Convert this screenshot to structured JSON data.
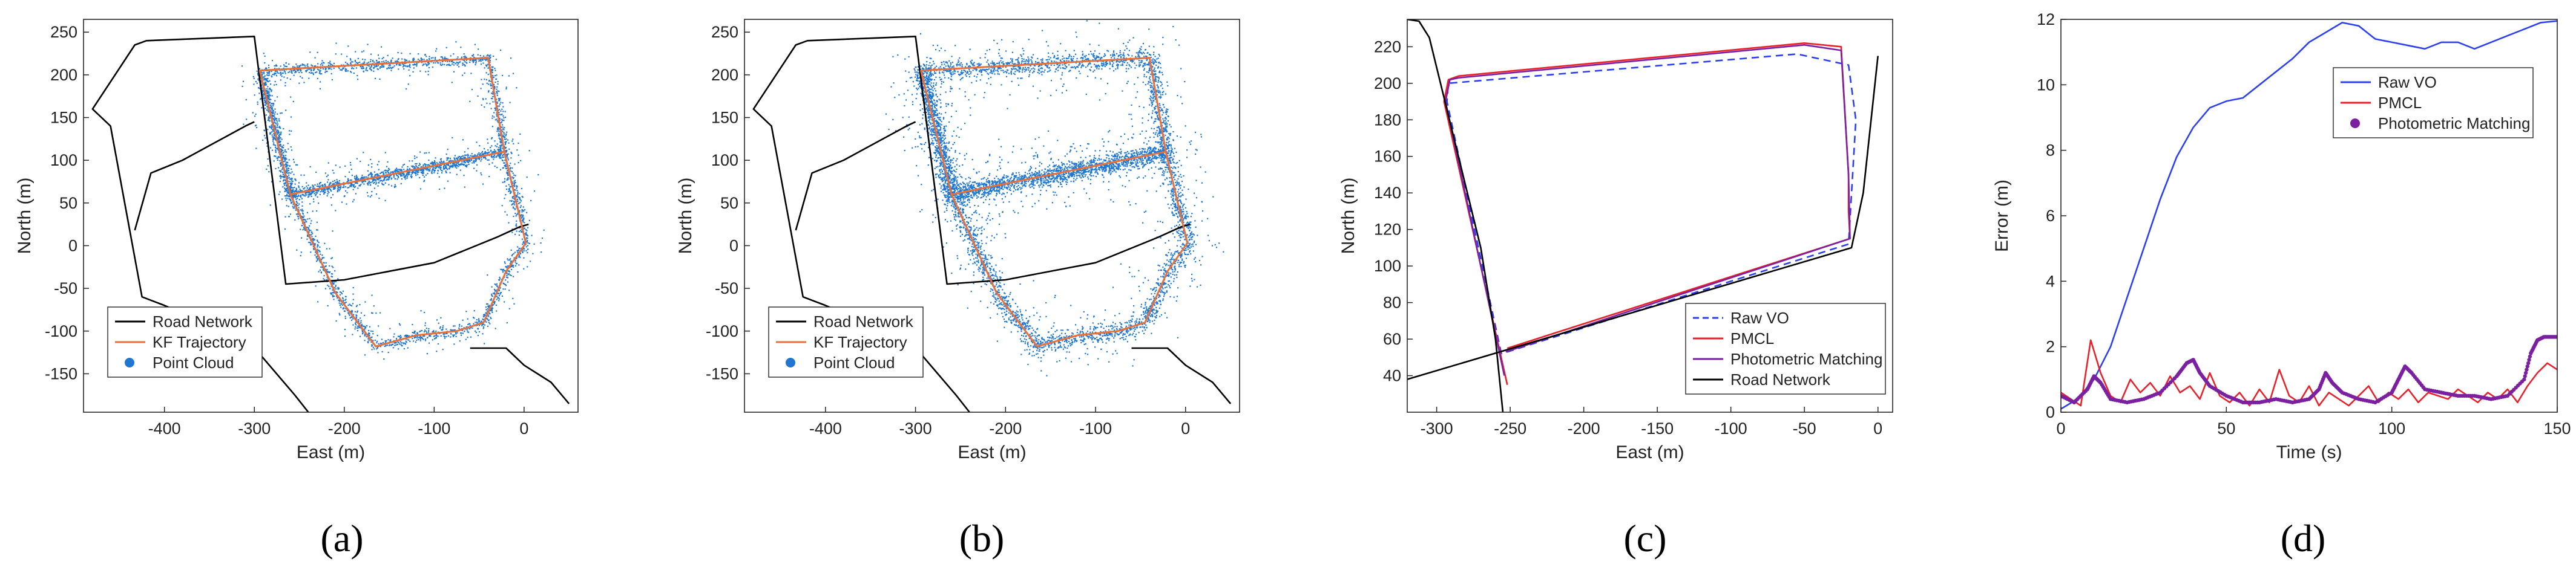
{
  "panels": [
    {
      "id": "a",
      "caption": "(a)",
      "colors": {
        "road": "#000000",
        "kf": "#e8703a",
        "cloud": "#1f77d0"
      },
      "chart_data": {
        "type": "scatter",
        "xlabel": "East (m)",
        "ylabel": "North (m)",
        "xlim": [
          -490,
          60
        ],
        "ylim": [
          -195,
          265
        ],
        "xticks": [
          -400,
          -300,
          -200,
          -100,
          0
        ],
        "yticks": [
          -150,
          -100,
          -50,
          0,
          50,
          100,
          150,
          200,
          250
        ],
        "grid": false,
        "legend": {
          "position": "bottom-left",
          "entries": [
            "Road Network",
            "KF Trajectory",
            "Point Cloud"
          ]
        },
        "series": [
          {
            "name": "Road Network",
            "kind": "line",
            "color": "#000000",
            "x": [
              -240,
              -255,
              -298,
              -320,
              -355,
              -400,
              -425,
              -460,
              -480,
              -433,
              -420,
              -300,
              -265,
              -200,
              -100,
              -30,
              -5,
              5
            ],
            "y": [
              -195,
              -175,
              -122,
              -110,
              -90,
              -70,
              -60,
              140,
              160,
              235,
              240,
              245,
              -45,
              -40,
              -20,
              10,
              22,
              25
            ]
          },
          {
            "name": "Road Network",
            "kind": "line",
            "color": "#000000",
            "x": [
              -300,
              -310,
              -345,
              -380,
              -415,
              -433
            ],
            "y": [
              145,
              140,
              120,
              100,
              85,
              18
            ]
          },
          {
            "name": "Road Network",
            "kind": "line",
            "color": "#000000",
            "x": [
              -60,
              -20,
              0,
              30,
              50
            ],
            "y": [
              -120,
              -120,
              -140,
              -160,
              -185
            ]
          },
          {
            "name": "KF Trajectory",
            "kind": "line",
            "color": "#e8703a",
            "x": [
              -294,
              -40,
              -22,
              -260,
              -294,
              -260,
              -210,
              -165,
              -120,
              -75,
              -45,
              -20,
              2,
              -22,
              -260
            ],
            "y": [
              205,
              220,
              110,
              60,
              205,
              60,
              -55,
              -118,
              -105,
              -100,
              -90,
              -30,
              3,
              110,
              60
            ]
          },
          {
            "name": "Point Cloud",
            "kind": "scatter",
            "color": "#1f77d0",
            "x": [],
            "y": []
          }
        ]
      }
    },
    {
      "id": "b",
      "caption": "(b)",
      "colors": {
        "road": "#000000",
        "kf": "#e8703a",
        "cloud": "#1f77d0"
      },
      "chart_data": {
        "type": "scatter",
        "xlabel": "East (m)",
        "ylabel": "North (m)",
        "xlim": [
          -490,
          60
        ],
        "ylim": [
          -195,
          265
        ],
        "xticks": [
          -400,
          -300,
          -200,
          -100,
          0
        ],
        "yticks": [
          -150,
          -100,
          -50,
          0,
          50,
          100,
          150,
          200,
          250
        ],
        "grid": false,
        "legend": {
          "position": "bottom-left",
          "entries": [
            "Road Network",
            "KF Trajectory",
            "Point Cloud"
          ]
        },
        "series": [
          {
            "name": "Road Network",
            "kind": "line",
            "color": "#000000",
            "x": [
              -240,
              -255,
              -298,
              -320,
              -355,
              -400,
              -425,
              -460,
              -480,
              -433,
              -420,
              -300,
              -265,
              -200,
              -100,
              -30,
              -5,
              5
            ],
            "y": [
              -195,
              -175,
              -122,
              -110,
              -90,
              -70,
              -60,
              140,
              160,
              235,
              240,
              245,
              -45,
              -40,
              -20,
              10,
              22,
              25
            ]
          },
          {
            "name": "Road Network",
            "kind": "line",
            "color": "#000000",
            "x": [
              -300,
              -310,
              -345,
              -380,
              -415,
              -433
            ],
            "y": [
              145,
              140,
              120,
              100,
              85,
              18
            ]
          },
          {
            "name": "Road Network",
            "kind": "line",
            "color": "#000000",
            "x": [
              -60,
              -20,
              0,
              30,
              50
            ],
            "y": [
              -120,
              -120,
              -140,
              -160,
              -185
            ]
          },
          {
            "name": "KF Trajectory",
            "kind": "line",
            "color": "#e8703a",
            "x": [
              -294,
              -40,
              -22,
              -260,
              -294,
              -260,
              -210,
              -165,
              -120,
              -75,
              -45,
              -20,
              2,
              -22,
              -260
            ],
            "y": [
              205,
              220,
              110,
              60,
              205,
              60,
              -55,
              -118,
              -105,
              -100,
              -90,
              -30,
              3,
              110,
              60
            ]
          },
          {
            "name": "Point Cloud",
            "kind": "scatter",
            "color": "#1f77d0",
            "x": [],
            "y": []
          }
        ]
      }
    },
    {
      "id": "c",
      "caption": "(c)",
      "colors": {
        "raw": "#2b3ff0",
        "pmcl": "#e8202a",
        "pm": "#7a20a0",
        "road": "#000000"
      },
      "chart_data": {
        "type": "line",
        "xlabel": "East (m)",
        "ylabel": "North (m)",
        "xlim": [
          -320,
          10
        ],
        "ylim": [
          20,
          235
        ],
        "xticks": [
          -300,
          -250,
          -200,
          -150,
          -100,
          -50,
          0
        ],
        "yticks": [
          40,
          60,
          80,
          100,
          120,
          140,
          160,
          180,
          200,
          220
        ],
        "grid": false,
        "legend": {
          "position": "bottom-right",
          "entries": [
            "Raw VO",
            "PMCL",
            "Photometric Matching",
            "Road Network"
          ]
        },
        "series": [
          {
            "name": "Raw VO",
            "kind": "line",
            "dash": true,
            "color": "#2b3ff0",
            "x": [
              -256,
              -293,
              -292,
              -55,
              -20,
              -15,
              -20,
              -256
            ],
            "y": [
              52,
              190,
              200,
              216,
              210,
              180,
              112,
              52
            ]
          },
          {
            "name": "PMCL",
            "kind": "line",
            "color": "#e8202a",
            "x": [
              -252,
              -295,
              -292,
              -285,
              -50,
              -25,
              -20,
              -20,
              -19,
              -252
            ],
            "y": [
              35,
              190,
              202,
              204,
              222,
              220,
              150,
              130,
              115,
              55
            ]
          },
          {
            "name": "Photometric Matching",
            "kind": "line",
            "color": "#7a20a0",
            "x": [
              -254,
              -294,
              -291,
              -285,
              -50,
              -25,
              -20,
              -19,
              -253
            ],
            "y": [
              40,
              190,
              202,
              203,
              221,
              218,
              150,
              115,
              53
            ]
          },
          {
            "name": "Road Network",
            "kind": "line",
            "color": "#000000",
            "x": [
              -320,
              -312,
              -305,
              -270,
              -260,
              -255
            ],
            "y": [
              235,
              234,
              225,
              110,
              60,
              20
            ]
          },
          {
            "name": "Road Network",
            "kind": "line",
            "color": "#000000",
            "x": [
              -320,
              -18,
              -10,
              0
            ],
            "y": [
              38,
              110,
              140,
              215
            ]
          }
        ]
      }
    },
    {
      "id": "d",
      "caption": "(d)",
      "colors": {
        "raw": "#2b3ff0",
        "pmcl": "#e8202a",
        "pm": "#7a20a0"
      },
      "chart_data": {
        "type": "line",
        "xlabel": "Time (s)",
        "ylabel": "Error (m)",
        "xlim": [
          0,
          150
        ],
        "ylim": [
          0,
          12
        ],
        "xticks": [
          0,
          50,
          100,
          150
        ],
        "yticks": [
          0,
          2,
          4,
          6,
          8,
          10,
          12
        ],
        "grid": false,
        "legend": {
          "position": "top-right",
          "entries": [
            "Raw VO",
            "PMCL",
            "Photometric Matching"
          ]
        },
        "series": [
          {
            "name": "Raw VO",
            "kind": "line",
            "color": "#2b3ff0",
            "x": [
              0,
              5,
              10,
              15,
              20,
              25,
              30,
              35,
              40,
              45,
              50,
              55,
              60,
              65,
              70,
              75,
              80,
              85,
              90,
              95,
              100,
              105,
              110,
              115,
              120,
              125,
              130,
              135,
              140,
              145,
              150
            ],
            "y": [
              0.1,
              0.4,
              1.0,
              2.0,
              3.5,
              5.0,
              6.5,
              7.8,
              8.7,
              9.3,
              9.5,
              9.6,
              10.0,
              10.4,
              10.8,
              11.3,
              11.6,
              11.9,
              11.8,
              11.4,
              11.3,
              11.2,
              11.1,
              11.3,
              11.3,
              11.1,
              11.3,
              11.5,
              11.7,
              11.9,
              11.95
            ]
          },
          {
            "name": "PMCL",
            "kind": "line",
            "color": "#e8202a",
            "x": [
              0,
              3,
              6,
              9,
              12,
              15,
              18,
              21,
              24,
              27,
              30,
              33,
              36,
              39,
              42,
              45,
              48,
              51,
              54,
              57,
              60,
              63,
              66,
              69,
              72,
              75,
              78,
              81,
              84,
              87,
              90,
              93,
              96,
              99,
              102,
              105,
              108,
              111,
              114,
              117,
              120,
              123,
              126,
              129,
              132,
              135,
              138,
              141,
              144,
              147,
              150
            ],
            "y": [
              0.6,
              0.4,
              0.2,
              2.2,
              1.2,
              0.5,
              0.3,
              1.0,
              0.6,
              0.9,
              0.5,
              1.1,
              0.6,
              0.8,
              0.4,
              1.2,
              0.5,
              0.3,
              0.6,
              0.2,
              0.7,
              0.3,
              1.3,
              0.5,
              0.3,
              0.8,
              0.2,
              0.6,
              0.4,
              0.2,
              0.5,
              0.8,
              0.3,
              0.6,
              0.4,
              0.7,
              0.3,
              0.6,
              0.5,
              0.4,
              0.7,
              0.5,
              0.3,
              0.6,
              0.4,
              0.7,
              0.3,
              0.8,
              1.2,
              1.5,
              1.3
            ]
          },
          {
            "name": "Photometric Matching",
            "kind": "points",
            "color": "#7a20a0",
            "x": [
              0,
              4,
              8,
              10,
              12,
              15,
              20,
              25,
              30,
              35,
              38,
              40,
              42,
              45,
              50,
              55,
              60,
              65,
              70,
              75,
              78,
              80,
              82,
              85,
              90,
              95,
              100,
              102,
              104,
              106,
              110,
              115,
              120,
              125,
              130,
              135,
              140,
              142,
              144,
              146,
              148,
              150
            ],
            "y": [
              0.5,
              0.3,
              0.7,
              1.1,
              0.9,
              0.4,
              0.3,
              0.4,
              0.6,
              1.1,
              1.5,
              1.6,
              1.2,
              0.8,
              0.5,
              0.3,
              0.3,
              0.4,
              0.3,
              0.4,
              0.7,
              1.2,
              0.9,
              0.6,
              0.4,
              0.3,
              0.6,
              1.0,
              1.4,
              1.2,
              0.7,
              0.6,
              0.5,
              0.5,
              0.4,
              0.5,
              1.0,
              1.8,
              2.2,
              2.3,
              2.3,
              2.3
            ]
          }
        ]
      }
    }
  ]
}
